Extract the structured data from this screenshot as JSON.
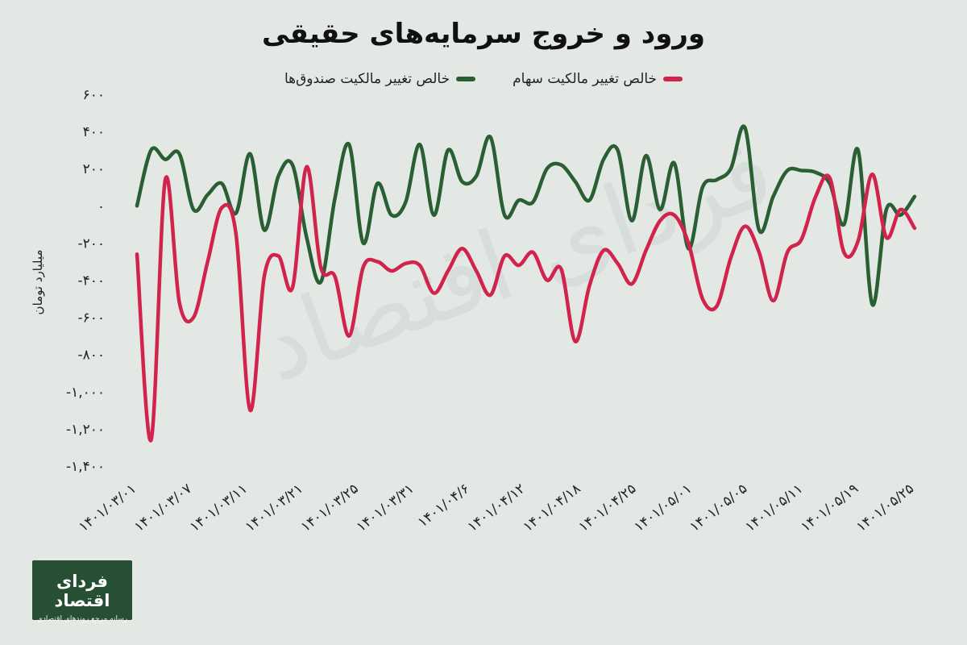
{
  "chart_data": {
    "type": "line",
    "title": "ورود و خروج سرمایه‌های حقیقی",
    "ylabel": "میلیارد تومان",
    "ylim": [
      -1400,
      600
    ],
    "yticks": [
      600,
      400,
      200,
      0,
      -200,
      -400,
      -600,
      -800,
      -1000,
      -1200,
      -1400
    ],
    "ytick_labels": [
      "۶۰۰",
      "۴۰۰",
      "۲۰۰",
      "۰",
      "-۲۰۰",
      "-۴۰۰",
      "-۶۰۰",
      "-۸۰۰",
      "-۱,۰۰۰",
      "-۱,۲۰۰",
      "-۱,۴۰۰"
    ],
    "x_tick_labels": [
      "۱۴۰۱/۰۳/۰۱",
      "۱۴۰۱/۰۳/۰۷",
      "۱۴۰۱/۰۳/۱۱",
      "۱۴۰۱/۰۳/۲۱",
      "۱۴۰۱/۰۳/۲۵",
      "۱۴۰۱/۰۳/۳۱",
      "۱۴۰۱/۰۴/۶",
      "۱۴۰۱/۰۴/۱۲",
      "۱۴۰۱/۰۴/۱۸",
      "۱۴۰۱/۰۴/۲۵",
      "۱۴۰۱/۰۵/۰۱",
      "۱۴۰۱/۰۵/۰۵",
      "۱۴۰۱/۰۵/۱۱",
      "۱۴۰۱/۰۵/۱۹",
      "۱۴۰۱/۰۵/۲۵"
    ],
    "grid": false,
    "legend_position": "top-center",
    "series": [
      {
        "name": "خالص تغییر مالکیت صندوق‌ها",
        "color": "#2a5e33",
        "values": [
          0,
          300,
          250,
          280,
          -20,
          60,
          120,
          -40,
          280,
          -130,
          160,
          220,
          -170,
          -410,
          40,
          330,
          -200,
          120,
          -50,
          20,
          330,
          -50,
          300,
          130,
          160,
          370,
          -50,
          30,
          20,
          200,
          220,
          130,
          30,
          250,
          300,
          -80,
          270,
          -20,
          230,
          -230,
          100,
          140,
          200,
          420,
          -130,
          50,
          190,
          190,
          180,
          120,
          -100,
          300,
          -530,
          -20,
          -50,
          50
        ]
      },
      {
        "name": "خالص تغییر مالکیت سهام",
        "color": "#d1234b",
        "values": [
          -260,
          -1260,
          140,
          -520,
          -600,
          -300,
          -10,
          -150,
          -1100,
          -380,
          -270,
          -440,
          210,
          -330,
          -380,
          -700,
          -330,
          -300,
          -350,
          -310,
          -320,
          -470,
          -350,
          -230,
          -350,
          -480,
          -270,
          -320,
          -250,
          -400,
          -340,
          -730,
          -430,
          -240,
          -310,
          -420,
          -240,
          -80,
          -50,
          -200,
          -500,
          -540,
          -280,
          -110,
          -250,
          -510,
          -250,
          -180,
          50,
          150,
          -250,
          -190,
          170,
          -170,
          -20,
          -120
        ]
      }
    ]
  },
  "legend": {
    "stocks": "خالص تغییر مالکیت سهام",
    "funds": "خالص تغییر مالکیت صندوق‌ها"
  },
  "watermark": "فردای اقتصاد",
  "logo": {
    "name": "فردای اقتصاد",
    "tagline": "رسانه مرجع روندهای اقتصادی"
  },
  "colors": {
    "background": "#e3e8e5",
    "funds": "#2a5e33",
    "stocks": "#d1234b",
    "logo_bg": "#264f33"
  }
}
